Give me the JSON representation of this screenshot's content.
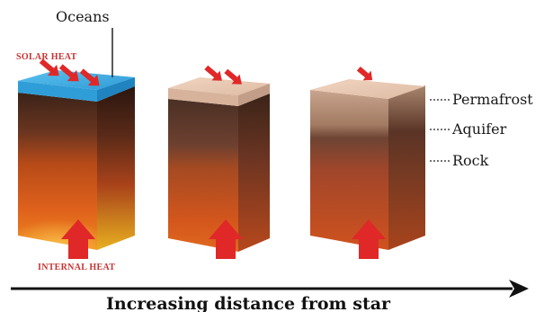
{
  "labels": {
    "oceans": "Oceans",
    "solar_heat": "SOLAR HEAT",
    "internal_heat": "INTERNAL HEAT",
    "permafrost": "Permafrost",
    "aquifer": "Aquifer",
    "rock": "Rock",
    "axis": "Increasing distance from star"
  },
  "columns": [
    {
      "surface": "ocean",
      "solar_arrows": 3
    },
    {
      "surface": "permafrost",
      "solar_arrows": 2
    },
    {
      "surface": "permafrost",
      "solar_arrows": 1
    }
  ],
  "colors": {
    "ocean": "#3aa9e0",
    "permafrost": "#e8c7b0",
    "heat_arrow": "#e02828",
    "label_red": "#c83232"
  }
}
